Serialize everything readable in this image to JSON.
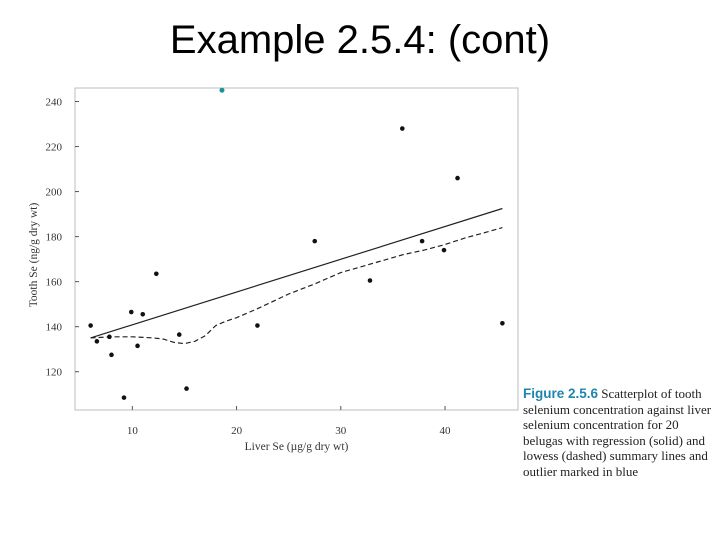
{
  "slide": {
    "title": "Example 2.5.4: (cont)"
  },
  "caption": {
    "label": "Figure 2.5.6",
    "text": "Scatterplot of tooth selenium concentration against liver selenium concentration for 20 belugas with regression (solid) and lowess (dashed) summary lines and outlier marked in blue"
  },
  "colors": {
    "points": "#111111",
    "outlier": "#1f8f9a",
    "caption_label": "#1f84b0"
  },
  "chart_data": {
    "type": "scatter",
    "xlabel": "Liver Se (µg/g dry wt)",
    "ylabel": "Tooth Se (ng/g dry wt)",
    "xlim": [
      4.5,
      47
    ],
    "ylim": [
      103,
      246
    ],
    "xticks": [
      10,
      20,
      30,
      40
    ],
    "yticks": [
      120,
      140,
      160,
      180,
      200,
      220,
      240
    ],
    "grid": false,
    "points": [
      {
        "x": 6.0,
        "y": 140.5
      },
      {
        "x": 6.6,
        "y": 133.5
      },
      {
        "x": 7.8,
        "y": 135.5
      },
      {
        "x": 8.0,
        "y": 127.5
      },
      {
        "x": 9.2,
        "y": 108.5
      },
      {
        "x": 9.9,
        "y": 146.5
      },
      {
        "x": 10.5,
        "y": 131.5
      },
      {
        "x": 11.0,
        "y": 145.5
      },
      {
        "x": 12.3,
        "y": 163.5
      },
      {
        "x": 14.5,
        "y": 136.5
      },
      {
        "x": 15.2,
        "y": 112.5
      },
      {
        "x": 22.0,
        "y": 140.5
      },
      {
        "x": 27.5,
        "y": 178.0
      },
      {
        "x": 32.8,
        "y": 160.5
      },
      {
        "x": 35.9,
        "y": 228.0
      },
      {
        "x": 37.8,
        "y": 178.0
      },
      {
        "x": 39.9,
        "y": 174.0
      },
      {
        "x": 41.2,
        "y": 206.0
      },
      {
        "x": 45.5,
        "y": 141.5
      }
    ],
    "outlier": {
      "x": 18.6,
      "y": 245.0
    },
    "regression_line": {
      "x": [
        6.0,
        45.5
      ],
      "y": [
        135.0,
        192.5
      ]
    },
    "lowess_line": {
      "x": [
        6.0,
        8,
        10,
        12,
        13,
        14,
        15,
        16,
        17,
        18,
        19,
        20,
        22,
        25,
        27.5,
        30,
        33,
        36,
        38,
        40,
        42,
        44,
        45.5
      ],
      "y": [
        135.0,
        135.5,
        135.5,
        135.0,
        134.5,
        133.0,
        132.5,
        133.5,
        136.0,
        140.5,
        142.5,
        144.0,
        148.0,
        154.5,
        159.0,
        164.0,
        168.0,
        172.0,
        174.0,
        176.5,
        179.5,
        182.0,
        184.0
      ]
    }
  }
}
